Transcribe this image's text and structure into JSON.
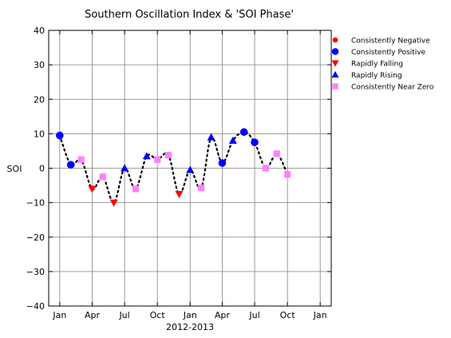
{
  "chart_data": {
    "type": "scatter",
    "title": "Southern Oscillation Index & 'SOI Phase'",
    "xlabel": "2012-2013",
    "ylabel": "SOI",
    "ylim": [
      -40,
      40
    ],
    "yticks": [
      -40,
      -30,
      -20,
      -10,
      0,
      10,
      20,
      30,
      40
    ],
    "ytick_labels": [
      "−40",
      "−30",
      "−20",
      "−10",
      "0",
      "10",
      "20",
      "30",
      "40"
    ],
    "xlim": [
      "2011-12-01",
      "2014-02-01"
    ],
    "xticks": [
      "2012-01-01",
      "2012-04-01",
      "2012-07-01",
      "2012-10-01",
      "2013-01-01",
      "2013-04-01",
      "2013-07-01",
      "2013-10-01",
      "2014-01-01"
    ],
    "xtick_labels": [
      "Jan",
      "Apr",
      "Jul",
      "Oct",
      "Jan",
      "Apr",
      "Jul",
      "Oct",
      "Jan"
    ],
    "grid": true,
    "legend_position": "right",
    "trend_line": {
      "style": "dotted",
      "color": "#000000"
    },
    "series": [
      {
        "name": "Consistently Negative",
        "marker": "circle-small",
        "color": "#ff0000",
        "points": []
      },
      {
        "name": "Consistently Positive",
        "marker": "circle",
        "color": "#0000ff",
        "points": [
          {
            "x": "2012-01-01",
            "y": 9.5
          },
          {
            "x": "2012-02-01",
            "y": 1.0
          },
          {
            "x": "2013-04-01",
            "y": 1.5
          },
          {
            "x": "2013-06-01",
            "y": 10.5
          },
          {
            "x": "2013-07-01",
            "y": 7.5
          }
        ]
      },
      {
        "name": "Rapidly Falling",
        "marker": "triangle-down",
        "color": "#ff0000",
        "points": [
          {
            "x": "2012-04-01",
            "y": -6.0
          },
          {
            "x": "2012-06-01",
            "y": -10.0
          },
          {
            "x": "2012-12-01",
            "y": -7.5
          }
        ]
      },
      {
        "name": "Rapidly Rising",
        "marker": "triangle-up",
        "color": "#0000ff",
        "points": [
          {
            "x": "2012-07-01",
            "y": 0.0
          },
          {
            "x": "2012-09-01",
            "y": 3.5
          },
          {
            "x": "2013-01-01",
            "y": -0.5
          },
          {
            "x": "2013-03-01",
            "y": 9.0
          },
          {
            "x": "2013-05-01",
            "y": 8.0
          }
        ]
      },
      {
        "name": "Consistently Near Zero",
        "marker": "square",
        "color": "#ff80ff",
        "points": [
          {
            "x": "2012-03-01",
            "y": 2.5
          },
          {
            "x": "2012-05-01",
            "y": -2.5
          },
          {
            "x": "2012-08-01",
            "y": -6.0
          },
          {
            "x": "2012-10-01",
            "y": 2.5
          },
          {
            "x": "2012-11-01",
            "y": 3.8
          },
          {
            "x": "2013-02-01",
            "y": -5.7
          },
          {
            "x": "2013-08-01",
            "y": 0.0
          },
          {
            "x": "2013-09-01",
            "y": 4.2
          },
          {
            "x": "2013-10-01",
            "y": -1.8
          }
        ]
      }
    ]
  }
}
